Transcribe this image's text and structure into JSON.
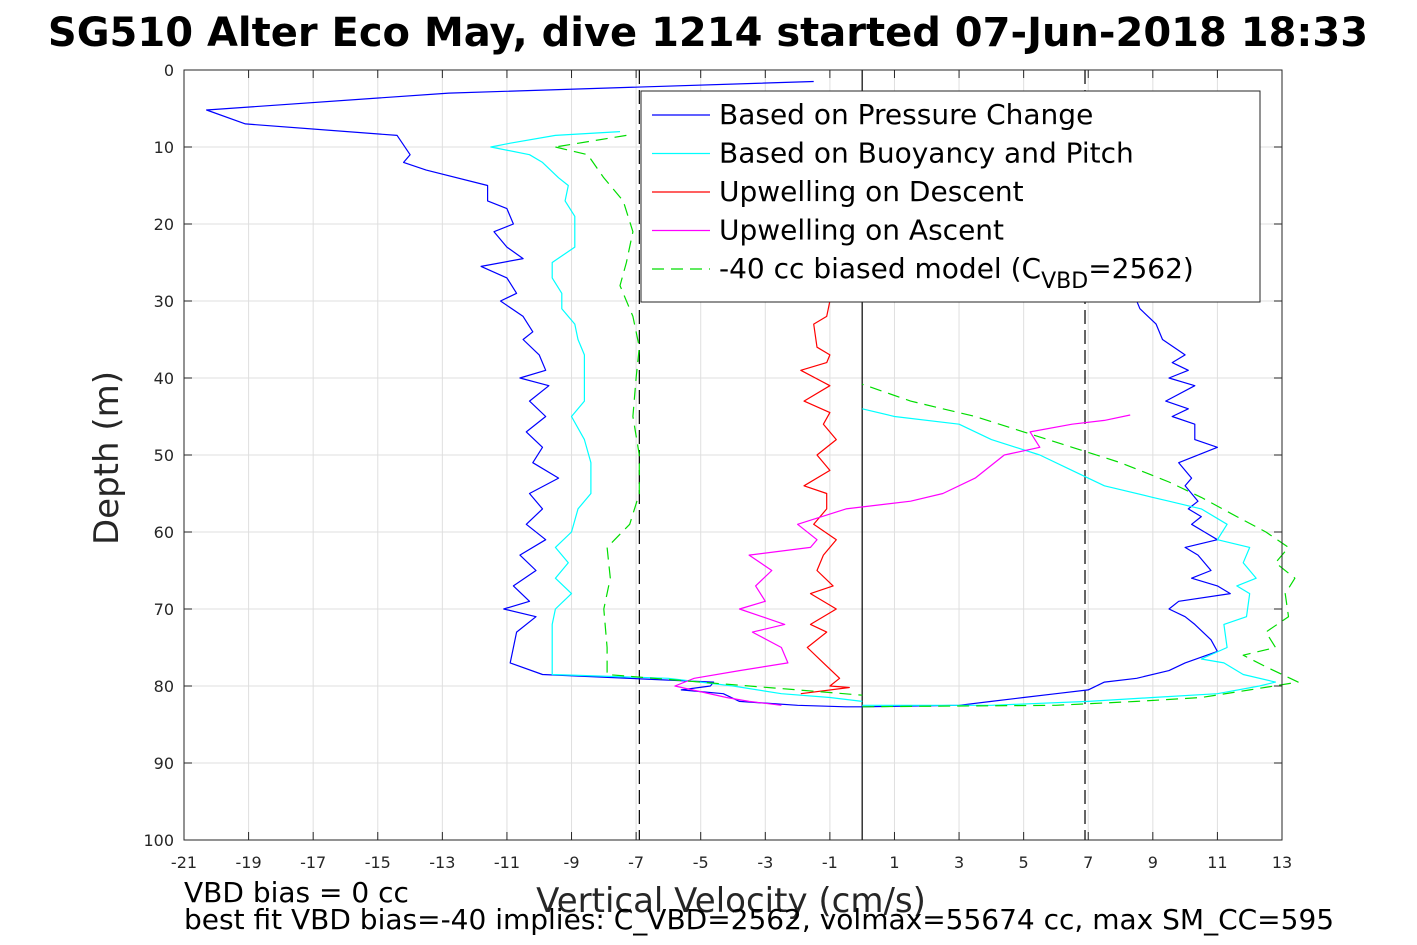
{
  "title": "SG510 Alter Eco May, dive 1214 started 07-Jun-2018 18:33",
  "notes": {
    "line1": "VBD bias = 0 cc",
    "line2": "best fit VBD bias=-40 implies: C_VBD=2562, volmax=55674 cc, max SM_CC=595"
  },
  "chart_data": {
    "type": "line",
    "xlabel": "Vertical Velocity (cm/s)",
    "ylabel": "Depth (m)",
    "xlim": [
      -21,
      13
    ],
    "ylim": [
      0,
      100
    ],
    "y_reversed": true,
    "grid": true,
    "legend_position": "top-right",
    "x_ticks": [
      -21,
      -19,
      -17,
      -15,
      -13,
      -11,
      -9,
      -7,
      -5,
      -3,
      -1,
      1,
      3,
      5,
      7,
      9,
      11,
      13
    ],
    "y_ticks": [
      0,
      10,
      20,
      30,
      40,
      50,
      60,
      70,
      80,
      90,
      100
    ],
    "reference_lines": [
      {
        "x": -6.9,
        "style": "dashed",
        "color": "#000000"
      },
      {
        "x": 0,
        "style": "solid",
        "color": "#000000"
      },
      {
        "x": 6.9,
        "style": "dashed",
        "color": "#000000"
      }
    ],
    "legend": [
      {
        "key": "pressure",
        "label": "Based on Pressure Change",
        "color": "#0000ff",
        "dash": false
      },
      {
        "key": "buoyancy",
        "label": "Based on Buoyancy and Pitch",
        "color": "#00ffff",
        "dash": false
      },
      {
        "key": "up_desc",
        "label": "Upwelling on Descent",
        "color": "#ff0000",
        "dash": false
      },
      {
        "key": "up_asc",
        "label": "Upwelling on Ascent",
        "color": "#ff00ff",
        "dash": false
      },
      {
        "key": "model",
        "label_main": "-40 cc biased model (C",
        "label_sub": "VBD",
        "label_end": "=2562)",
        "color": "#00dd00",
        "dash": true
      }
    ],
    "series": [
      {
        "key": "pressure_desc",
        "color": "#0000ff",
        "dash": false,
        "points": [
          [
            -1.5,
            1.5
          ],
          [
            -12.8,
            3
          ],
          [
            -20.3,
            5.2
          ],
          [
            -19.1,
            7
          ],
          [
            -14.4,
            8.5
          ],
          [
            -14,
            11
          ],
          [
            -14.2,
            12
          ],
          [
            -13.5,
            13
          ],
          [
            -11.6,
            15
          ],
          [
            -11.6,
            17
          ],
          [
            -11,
            18
          ],
          [
            -10.8,
            20
          ],
          [
            -11.4,
            21
          ],
          [
            -11,
            23
          ],
          [
            -10.5,
            24.5
          ],
          [
            -11.8,
            25.5
          ],
          [
            -11,
            27
          ],
          [
            -10.7,
            29
          ],
          [
            -11.2,
            30
          ],
          [
            -10.5,
            32
          ],
          [
            -10.2,
            34
          ],
          [
            -10.5,
            35
          ],
          [
            -10,
            37
          ],
          [
            -9.8,
            39
          ],
          [
            -10.6,
            40
          ],
          [
            -9.7,
            41
          ],
          [
            -10.3,
            43
          ],
          [
            -9.8,
            45
          ],
          [
            -10.4,
            47
          ],
          [
            -9.9,
            49
          ],
          [
            -10.2,
            51
          ],
          [
            -9.4,
            53
          ],
          [
            -10.3,
            55
          ],
          [
            -9.9,
            57
          ],
          [
            -10.4,
            59
          ],
          [
            -9.8,
            61
          ],
          [
            -10.6,
            63
          ],
          [
            -10.1,
            65
          ],
          [
            -10.8,
            67
          ],
          [
            -10.3,
            69
          ],
          [
            -11.1,
            70
          ],
          [
            -10.1,
            71
          ],
          [
            -10.7,
            73
          ],
          [
            -10.8,
            75
          ],
          [
            -10.9,
            77
          ],
          [
            -9.9,
            78.5
          ],
          [
            -4.6,
            79.5
          ],
          [
            -4.7,
            80
          ],
          [
            -5.6,
            80.5
          ],
          [
            -4.3,
            81
          ],
          [
            -3.8,
            82
          ],
          [
            -2.0,
            82.5
          ],
          [
            -0.5,
            82.7
          ],
          [
            0,
            82.7
          ]
        ]
      },
      {
        "key": "pressure_asc",
        "color": "#0000ff",
        "dash": false,
        "points": [
          [
            0,
            82.7
          ],
          [
            3,
            82.5
          ],
          [
            4,
            82
          ],
          [
            5,
            81.5
          ],
          [
            6,
            81
          ],
          [
            7,
            80.5
          ],
          [
            7.5,
            79.5
          ],
          [
            8.5,
            79
          ],
          [
            9.5,
            78
          ],
          [
            10,
            77
          ],
          [
            11,
            75.5
          ],
          [
            10.8,
            74
          ],
          [
            10.3,
            72
          ],
          [
            10,
            71
          ],
          [
            9.5,
            70
          ],
          [
            9.8,
            69
          ],
          [
            11.4,
            68
          ],
          [
            11,
            67
          ],
          [
            10.2,
            66
          ],
          [
            10.8,
            65
          ],
          [
            10.4,
            63
          ],
          [
            10,
            62
          ],
          [
            11,
            61
          ],
          [
            10.6,
            60
          ],
          [
            10.2,
            59
          ],
          [
            10.5,
            58
          ],
          [
            10.1,
            57
          ],
          [
            10.4,
            56
          ],
          [
            10,
            54
          ],
          [
            10.2,
            53
          ],
          [
            9.8,
            51
          ],
          [
            11,
            49
          ],
          [
            10.3,
            48
          ],
          [
            10.3,
            46
          ],
          [
            9.6,
            45
          ],
          [
            10.1,
            44
          ],
          [
            9.4,
            43
          ],
          [
            10.3,
            41
          ],
          [
            9.5,
            40
          ],
          [
            10.1,
            39
          ],
          [
            9.6,
            38
          ],
          [
            10,
            37
          ],
          [
            9.3,
            35
          ],
          [
            9.1,
            33
          ],
          [
            8.6,
            31
          ],
          [
            8.5,
            30
          ]
        ]
      },
      {
        "key": "buoyancy_desc",
        "color": "#00ffff",
        "dash": false,
        "points": [
          [
            -7.5,
            8
          ],
          [
            -9.5,
            8.5
          ],
          [
            -10.9,
            9.5
          ],
          [
            -11.5,
            10
          ],
          [
            -10.3,
            11
          ],
          [
            -9.9,
            12
          ],
          [
            -9.4,
            14
          ],
          [
            -9.1,
            15
          ],
          [
            -9.2,
            17
          ],
          [
            -8.9,
            19
          ],
          [
            -8.9,
            21
          ],
          [
            -8.9,
            23
          ],
          [
            -9.6,
            25
          ],
          [
            -9.6,
            27
          ],
          [
            -9.3,
            29
          ],
          [
            -9.3,
            31
          ],
          [
            -8.9,
            33
          ],
          [
            -8.8,
            35
          ],
          [
            -8.6,
            37
          ],
          [
            -8.6,
            40
          ],
          [
            -8.6,
            43
          ],
          [
            -9.0,
            45
          ],
          [
            -8.6,
            48
          ],
          [
            -8.4,
            51
          ],
          [
            -8.4,
            55
          ],
          [
            -8.8,
            57
          ],
          [
            -9.0,
            60
          ],
          [
            -9.5,
            62
          ],
          [
            -9.1,
            64
          ],
          [
            -9.5,
            66
          ],
          [
            -9.0,
            68
          ],
          [
            -9.5,
            70
          ],
          [
            -9.6,
            72
          ],
          [
            -9.6,
            75
          ],
          [
            -9.6,
            78.5
          ],
          [
            -6,
            79
          ],
          [
            -4,
            80
          ],
          [
            -2.5,
            81
          ],
          [
            -1,
            81.5
          ],
          [
            0,
            82
          ]
        ]
      },
      {
        "key": "buoyancy_asc",
        "color": "#00ffff",
        "dash": false,
        "points": [
          [
            0,
            82.5
          ],
          [
            4,
            82.5
          ],
          [
            7,
            82
          ],
          [
            9,
            81.5
          ],
          [
            11,
            81
          ],
          [
            12.3,
            80
          ],
          [
            12.8,
            79.5
          ],
          [
            11.8,
            78.5
          ],
          [
            11.2,
            77
          ],
          [
            10.5,
            76.5
          ],
          [
            11.3,
            75
          ],
          [
            11.2,
            72
          ],
          [
            11.9,
            71
          ],
          [
            12,
            68
          ],
          [
            11.6,
            67
          ],
          [
            12.2,
            66
          ],
          [
            11.8,
            64
          ],
          [
            12.0,
            62
          ],
          [
            11.0,
            61
          ],
          [
            11.3,
            59
          ],
          [
            10.5,
            57
          ],
          [
            9.5,
            56
          ],
          [
            9,
            55.5
          ],
          [
            7.5,
            54
          ],
          [
            6.5,
            52
          ],
          [
            5.5,
            50
          ],
          [
            4,
            48
          ],
          [
            3,
            46
          ],
          [
            1,
            45
          ],
          [
            0,
            44
          ]
        ]
      },
      {
        "key": "up_desc",
        "color": "#ff0000",
        "dash": false,
        "points": [
          [
            -1,
            30
          ],
          [
            -1.1,
            32
          ],
          [
            -1.5,
            33
          ],
          [
            -1.4,
            36
          ],
          [
            -1.0,
            37
          ],
          [
            -1.1,
            38
          ],
          [
            -1.9,
            39
          ],
          [
            -1.0,
            41
          ],
          [
            -1.8,
            43
          ],
          [
            -1.0,
            44.5
          ],
          [
            -1.2,
            46
          ],
          [
            -0.8,
            48
          ],
          [
            -1.4,
            50
          ],
          [
            -1.0,
            52
          ],
          [
            -1.8,
            54
          ],
          [
            -1.1,
            55
          ],
          [
            -1.1,
            57
          ],
          [
            -1.5,
            59
          ],
          [
            -0.8,
            61
          ],
          [
            -1.2,
            63
          ],
          [
            -1.4,
            65
          ],
          [
            -0.9,
            67
          ],
          [
            -1.6,
            68
          ],
          [
            -0.8,
            70
          ],
          [
            -1.6,
            72
          ],
          [
            -1.1,
            73
          ],
          [
            -1.7,
            75
          ],
          [
            -1.2,
            77
          ],
          [
            -0.7,
            79
          ],
          [
            -1.0,
            80
          ],
          [
            -0.4,
            80.2
          ],
          [
            -1.9,
            81
          ]
        ]
      },
      {
        "key": "up_asc",
        "color": "#ff00ff",
        "dash": false,
        "points": [
          [
            -2.5,
            82.5
          ],
          [
            -3.5,
            82
          ],
          [
            -4.2,
            81.5
          ],
          [
            -5.8,
            80
          ],
          [
            -5.2,
            79
          ],
          [
            -3.8,
            78
          ],
          [
            -2.3,
            77
          ],
          [
            -2.5,
            75
          ],
          [
            -3.4,
            73
          ],
          [
            -2.4,
            72
          ],
          [
            -3.8,
            70
          ],
          [
            -3.0,
            69
          ],
          [
            -3.3,
            67
          ],
          [
            -2.8,
            65
          ],
          [
            -3.5,
            63
          ],
          [
            -1.6,
            62
          ],
          [
            -1.4,
            61
          ],
          [
            -2.0,
            59
          ],
          [
            -0.5,
            57
          ],
          [
            1.5,
            56
          ],
          [
            2.5,
            55
          ],
          [
            3.5,
            53
          ],
          [
            4.4,
            50
          ],
          [
            5.5,
            49
          ],
          [
            5.2,
            47
          ],
          [
            6.5,
            46
          ],
          [
            7.5,
            45.5
          ],
          [
            8.3,
            44.8
          ]
        ]
      },
      {
        "key": "model",
        "color": "#00dd00",
        "dash": true,
        "points": [
          [
            -9.5,
            10
          ],
          [
            -8.5,
            11
          ],
          [
            -8.0,
            14
          ],
          [
            -7.4,
            17
          ],
          [
            -7.1,
            21
          ],
          [
            -7.3,
            25
          ],
          [
            -7.5,
            28
          ],
          [
            -7.1,
            32
          ],
          [
            -6.9,
            36
          ],
          [
            -7.0,
            40
          ],
          [
            -7.1,
            45
          ],
          [
            -6.9,
            50
          ],
          [
            -6.9,
            55
          ],
          [
            -7.2,
            59
          ],
          [
            -7.9,
            62
          ],
          [
            -7.8,
            66
          ],
          [
            -8.0,
            70
          ],
          [
            -7.9,
            75
          ],
          [
            -7.9,
            78.5
          ],
          [
            -5,
            79.5
          ],
          [
            -2,
            80.5
          ],
          [
            0,
            81.2
          ]
        ]
      },
      {
        "key": "model_asc",
        "color": "#00dd00",
        "dash": true,
        "points": [
          [
            0,
            82.7
          ],
          [
            3,
            82.6
          ],
          [
            6,
            82.5
          ],
          [
            8.5,
            82
          ],
          [
            10.5,
            81.5
          ],
          [
            12,
            80.5
          ],
          [
            13.5,
            79.5
          ],
          [
            12.5,
            77.5
          ],
          [
            11.8,
            76
          ],
          [
            12.8,
            75
          ],
          [
            12.5,
            73
          ],
          [
            13.2,
            71
          ],
          [
            13.1,
            68
          ],
          [
            13.4,
            66
          ],
          [
            12.8,
            64
          ],
          [
            13.2,
            62
          ],
          [
            12.5,
            60
          ],
          [
            11.6,
            58
          ],
          [
            10.5,
            55.5
          ],
          [
            9.5,
            53.5
          ],
          [
            8,
            51
          ],
          [
            6.5,
            49
          ],
          [
            5,
            47
          ],
          [
            3.5,
            45
          ],
          [
            1.5,
            43
          ],
          [
            0,
            40.8
          ]
        ]
      },
      {
        "key": "model_top",
        "color": "#00dd00",
        "dash": true,
        "points": [
          [
            -7.3,
            8.5
          ],
          [
            -9.5,
            10
          ]
        ]
      }
    ]
  }
}
